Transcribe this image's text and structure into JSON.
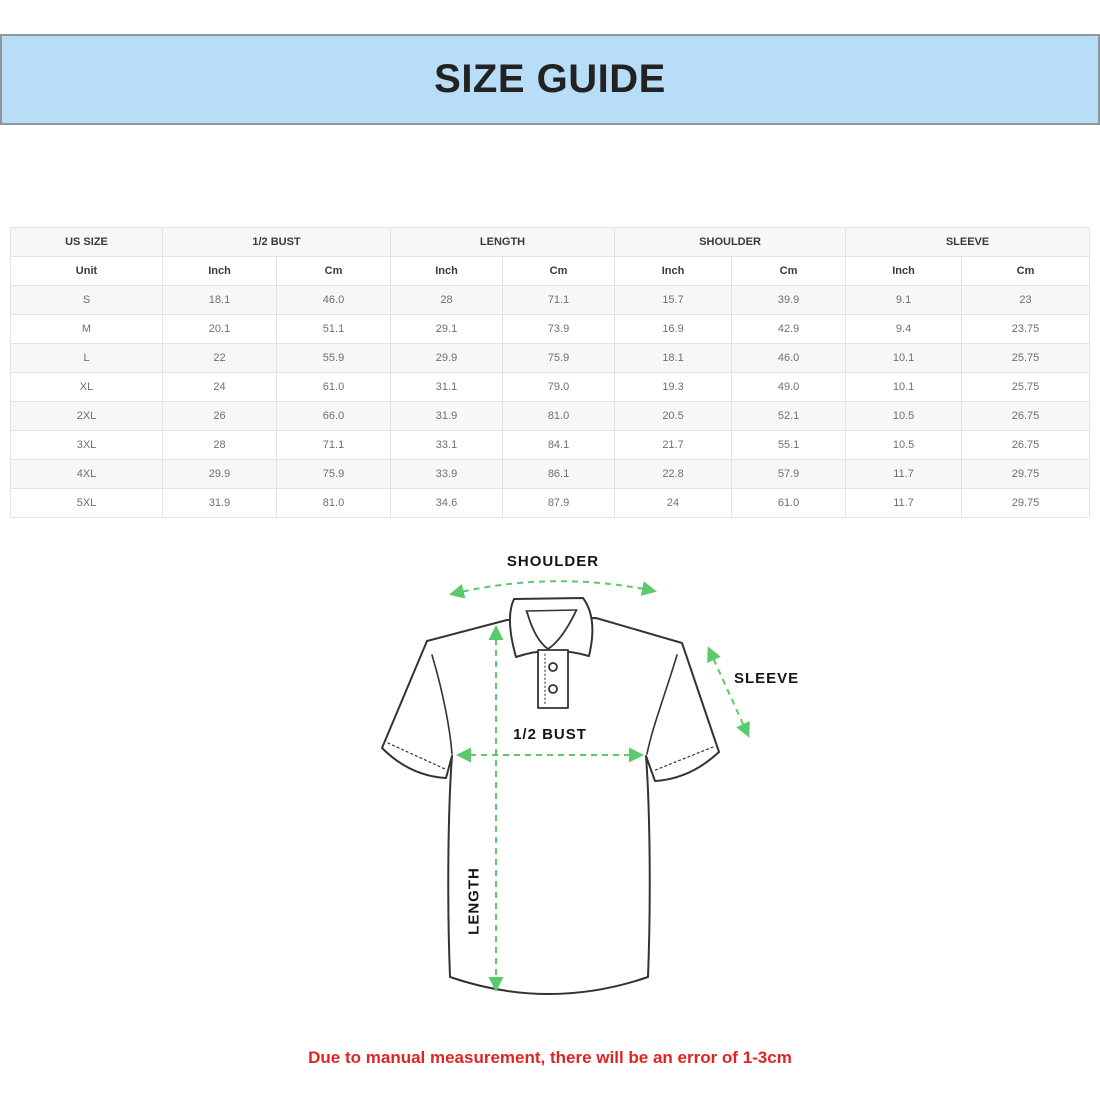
{
  "banner": {
    "title": "SIZE GUIDE"
  },
  "colors": {
    "banner_bg": "#b8ddf7",
    "banner_border": "#8f979e",
    "stripe_gray": "#f7f7f7",
    "table_border": "#e4e4e4",
    "arrow_green": "#5cc96c",
    "shirt_outline": "#333333",
    "disclaimer_red": "#e02424"
  },
  "table": {
    "groups": [
      {
        "label": "US SIZE",
        "span": 1
      },
      {
        "label": "1/2 BUST",
        "span": 2
      },
      {
        "label": "LENGTH",
        "span": 2
      },
      {
        "label": "SHOULDER",
        "span": 2
      },
      {
        "label": "SLEEVE",
        "span": 2
      }
    ],
    "unit_headers": [
      "Unit",
      "Inch",
      "Cm",
      "Inch",
      "Cm",
      "Inch",
      "Cm",
      "Inch",
      "Cm"
    ],
    "rows": [
      [
        "S",
        "18.1",
        "46.0",
        "28",
        "71.1",
        "15.7",
        "39.9",
        "9.1",
        "23"
      ],
      [
        "M",
        "20.1",
        "51.1",
        "29.1",
        "73.9",
        "16.9",
        "42.9",
        "9.4",
        "23.75"
      ],
      [
        "L",
        "22",
        "55.9",
        "29.9",
        "75.9",
        "18.1",
        "46.0",
        "10.1",
        "25.75"
      ],
      [
        "XL",
        "24",
        "61.0",
        "31.1",
        "79.0",
        "19.3",
        "49.0",
        "10.1",
        "25.75"
      ],
      [
        "2XL",
        "26",
        "66.0",
        "31.9",
        "81.0",
        "20.5",
        "52.1",
        "10.5",
        "26.75"
      ],
      [
        "3XL",
        "28",
        "71.1",
        "33.1",
        "84.1",
        "21.7",
        "55.1",
        "10.5",
        "26.75"
      ],
      [
        "4XL",
        "29.9",
        "75.9",
        "33.9",
        "86.1",
        "22.8",
        "57.9",
        "11.7",
        "29.75"
      ],
      [
        "5XL",
        "31.9",
        "81.0",
        "34.6",
        "87.9",
        "24",
        "61.0",
        "11.7",
        "29.75"
      ]
    ]
  },
  "diagram": {
    "labels": {
      "shoulder": "SHOULDER",
      "sleeve": "SLEEVE",
      "bust": "1/2 BUST",
      "length": "LENGTH"
    }
  },
  "disclaimer": {
    "text": "Due to manual measurement, there will be an error of 1-3cm"
  }
}
